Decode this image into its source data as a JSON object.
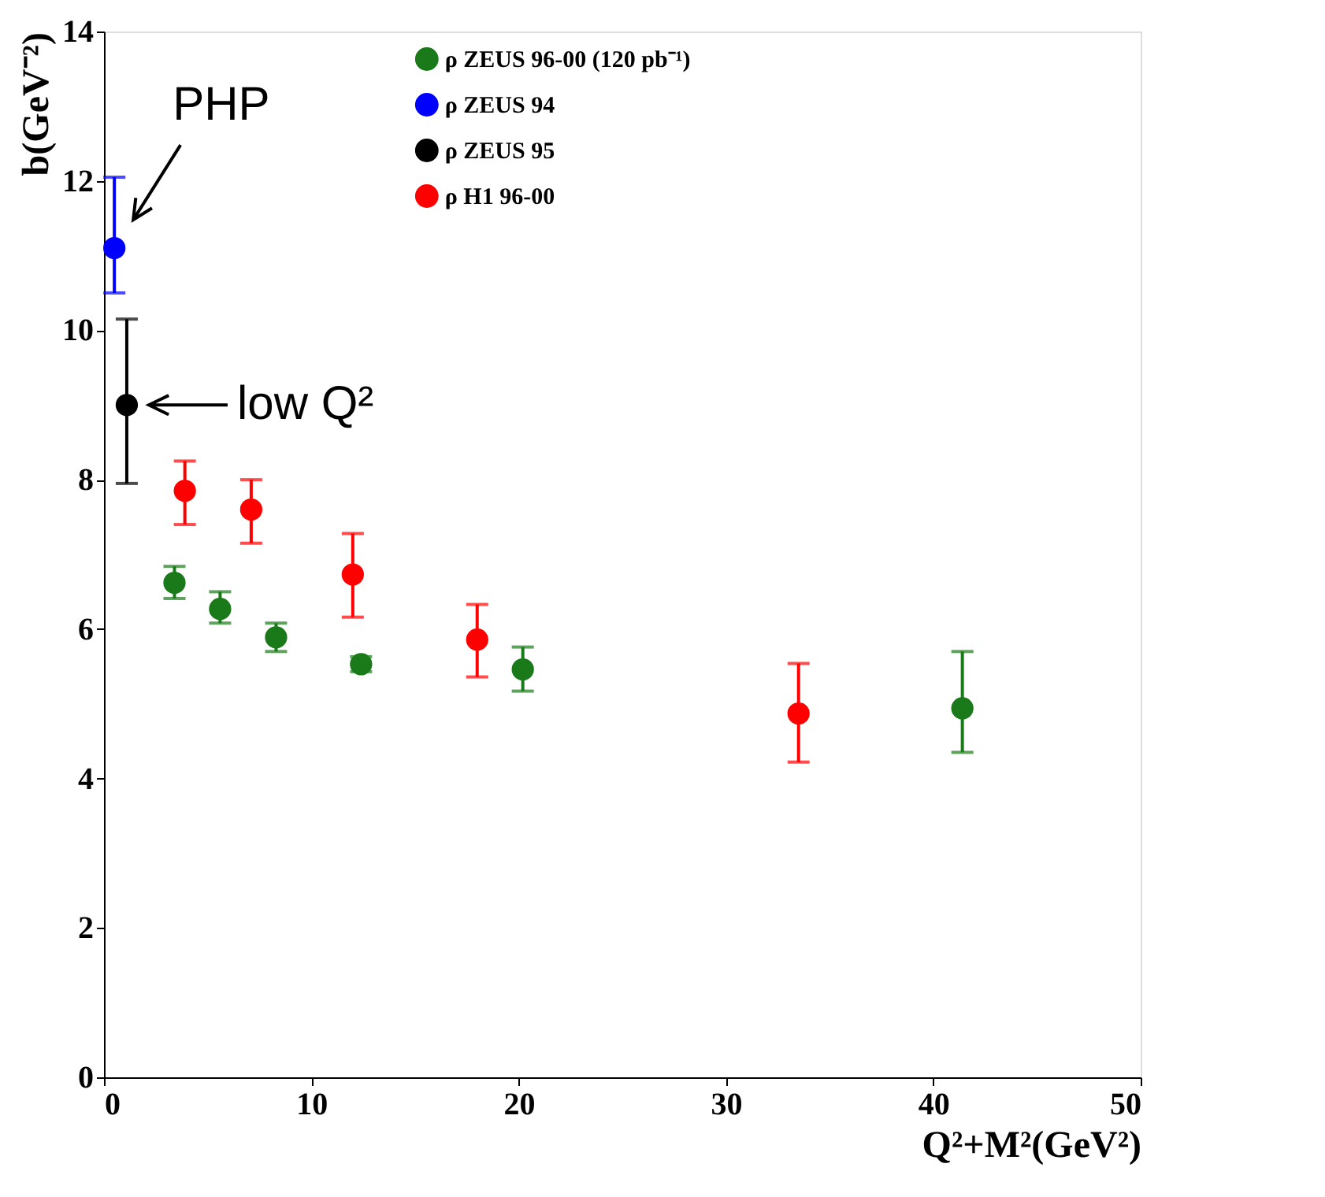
{
  "chart_data": {
    "type": "scatter",
    "xlabel": "Q²+M²(GeV²)",
    "ylabel": "b(GeV⁻²)",
    "xlim": [
      0,
      50
    ],
    "xticks": [
      0,
      10,
      20,
      30,
      40,
      50
    ],
    "ylim": [
      0,
      14
    ],
    "yticks": [
      0,
      2,
      4,
      6,
      8,
      10,
      12,
      14
    ],
    "grid": false,
    "legend": "top",
    "marker": "circle",
    "series": [
      {
        "name": "ρ ZEUS  96-00 (120 pb⁻¹)",
        "color": "#1a7a1a",
        "x": [
          3.4,
          5.6,
          8.3,
          12.4,
          20.2,
          41.4
        ],
        "values": [
          6.62,
          6.27,
          5.89,
          5.53,
          5.46,
          4.94
        ],
        "errors": [
          [
            6.41,
            6.84
          ],
          [
            6.08,
            6.5
          ],
          [
            5.7,
            6.08
          ],
          [
            5.43,
            5.63
          ],
          [
            5.17,
            5.76
          ],
          [
            4.35,
            5.7
          ]
        ]
      },
      {
        "name": "ρ ZEUS 94",
        "color": "#0000ff",
        "x": [
          0.5
        ],
        "values": [
          11.1
        ],
        "errors": [
          [
            10.5,
            12.05
          ]
        ]
      },
      {
        "name": "ρ ZEUS 95",
        "color": "#000000",
        "x": [
          1.1
        ],
        "values": [
          9.0
        ],
        "errors": [
          [
            7.95,
            10.15
          ]
        ]
      },
      {
        "name": "ρ H1 96-00",
        "color": "#ff0000",
        "x": [
          3.9,
          7.1,
          12.0,
          18.0,
          33.5
        ],
        "values": [
          7.85,
          7.6,
          6.73,
          5.86,
          4.87
        ],
        "errors": [
          [
            7.4,
            8.25
          ],
          [
            7.15,
            8.0
          ],
          [
            6.16,
            7.28
          ],
          [
            5.36,
            6.33
          ],
          [
            4.22,
            5.54
          ]
        ]
      }
    ],
    "annotations": [
      {
        "text": "PHP",
        "x": 0.5,
        "y": 11.1
      },
      {
        "text": "low Q²",
        "x": 1.1,
        "y": 9.0
      }
    ]
  }
}
